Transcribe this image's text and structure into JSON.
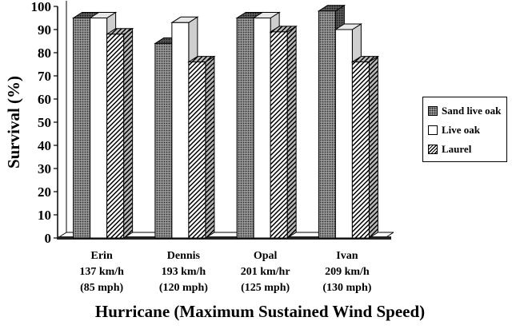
{
  "chart_data": {
    "type": "bar",
    "title": "",
    "ylabel": "Survival (%)",
    "xlabel": "Hurricane (Maximum Sustained Wind Speed)",
    "ylim": [
      0,
      100
    ],
    "yticks": [
      0,
      10,
      20,
      30,
      40,
      50,
      60,
      70,
      80,
      90,
      100
    ],
    "categories": [
      {
        "name": "Erin",
        "speed_kmh": "137 km/h",
        "speed_mph": "(85 mph)"
      },
      {
        "name": "Dennis",
        "speed_kmh": "193 km/h",
        "speed_mph": "(120 mph)"
      },
      {
        "name": "Opal",
        "speed_kmh": "201 km/hr",
        "speed_mph": "(125 mph)"
      },
      {
        "name": "Ivan",
        "speed_kmh": "209 km/h",
        "speed_mph": "(130 mph)"
      }
    ],
    "series": [
      {
        "name": "Sand live oak",
        "values": [
          95,
          84,
          95,
          98
        ]
      },
      {
        "name": "Live oak",
        "values": [
          95,
          93,
          95,
          90
        ]
      },
      {
        "name": "Laurel",
        "values": [
          88,
          76,
          89,
          76
        ]
      }
    ],
    "legend_position": "right",
    "grid": false
  }
}
